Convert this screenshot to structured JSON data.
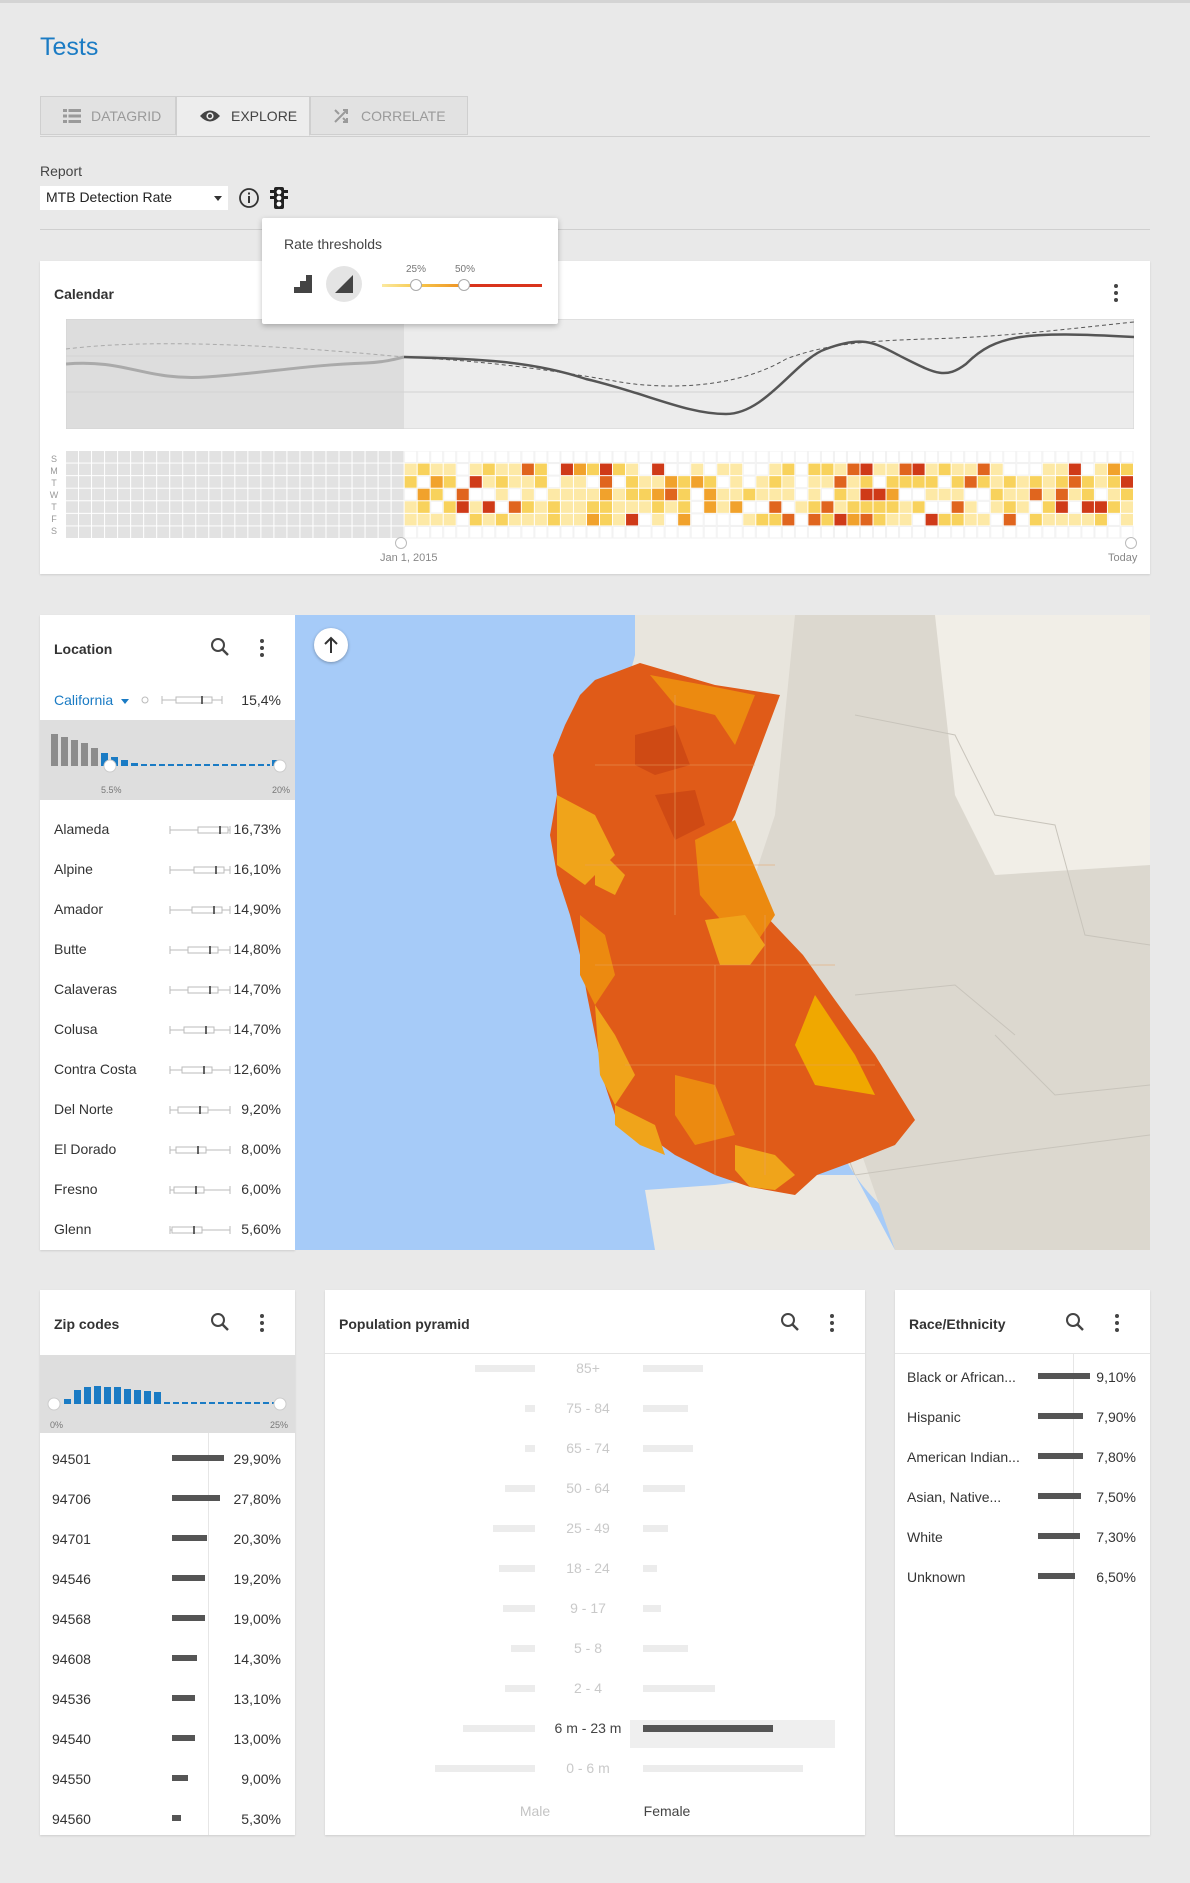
{
  "page_title": "Tests",
  "tabs": [
    {
      "label": "DATAGRID",
      "icon": "list-icon",
      "active": false
    },
    {
      "label": "EXPLORE",
      "icon": "eye-icon",
      "active": true
    },
    {
      "label": "CORRELATE",
      "icon": "shuffle-icon",
      "active": false
    }
  ],
  "report": {
    "label": "Report",
    "selected": "MTB Detection Rate"
  },
  "thresholds": {
    "title": "Rate thresholds",
    "low_label": "25%",
    "high_label": "50%",
    "colors": [
      "#f7d36b",
      "#f0a62a",
      "#e8421e"
    ]
  },
  "calendar": {
    "title": "Calendar",
    "day_labels": [
      "S",
      "M",
      "T",
      "W",
      "T",
      "F",
      "S"
    ],
    "start_label": "Jan 1, 2015",
    "end_label": "Today",
    "heat_colors": [
      "#fff",
      "#fde9a6",
      "#f8d25c",
      "#f1a22c",
      "#e0651e",
      "#cf3a18"
    ]
  },
  "location": {
    "title": "Location",
    "region": "California",
    "region_pct": "15,4%",
    "range_min": "5.5%",
    "range_max": "20%",
    "rows": [
      {
        "name": "Alameda",
        "pct": "16,73%"
      },
      {
        "name": "Alpine",
        "pct": "16,10%"
      },
      {
        "name": "Amador",
        "pct": "14,90%"
      },
      {
        "name": "Butte",
        "pct": "14,80%"
      },
      {
        "name": "Calaveras",
        "pct": "14,70%"
      },
      {
        "name": "Colusa",
        "pct": "14,70%"
      },
      {
        "name": "Contra Costa",
        "pct": "12,60%"
      },
      {
        "name": "Del Norte",
        "pct": "9,20%"
      },
      {
        "name": "El Dorado",
        "pct": "8,00%"
      },
      {
        "name": "Fresno",
        "pct": "6,00%"
      },
      {
        "name": "Glenn",
        "pct": "5,60%"
      }
    ]
  },
  "zip": {
    "title": "Zip codes",
    "range_min": "0%",
    "range_max": "25%",
    "rows": [
      {
        "code": "94501",
        "pct": "29,90%",
        "value": 29.9
      },
      {
        "code": "94706",
        "pct": "27,80%",
        "value": 27.8
      },
      {
        "code": "94701",
        "pct": "20,30%",
        "value": 20.3
      },
      {
        "code": "94546",
        "pct": "19,20%",
        "value": 19.2
      },
      {
        "code": "94568",
        "pct": "19,00%",
        "value": 19.0
      },
      {
        "code": "94608",
        "pct": "14,30%",
        "value": 14.3
      },
      {
        "code": "94536",
        "pct": "13,10%",
        "value": 13.1
      },
      {
        "code": "94540",
        "pct": "13,00%",
        "value": 13.0
      },
      {
        "code": "94550",
        "pct": "9,00%",
        "value": 9.0
      },
      {
        "code": "94560",
        "pct": "5,30%",
        "value": 5.3
      }
    ]
  },
  "pyramid": {
    "title": "Population pyramid",
    "male_label": "Male",
    "female_label": "Female",
    "highlight": "6 m - 23 m",
    "groups": [
      "85+",
      "75 - 84",
      "65 - 74",
      "50 - 64",
      "25 - 49",
      "18 - 24",
      "9 - 17",
      "5 - 8",
      "2 - 4",
      "6 m - 23 m",
      "0 - 6 m"
    ]
  },
  "race": {
    "title": "Race/Ethnicity",
    "rows": [
      {
        "name": "Black or African...",
        "pct": "9,10%",
        "value": 9.1
      },
      {
        "name": "Hispanic",
        "pct": "7,90%",
        "value": 7.9
      },
      {
        "name": "American Indian...",
        "pct": "7,80%",
        "value": 7.8
      },
      {
        "name": "Asian, Native...",
        "pct": "7,50%",
        "value": 7.5
      },
      {
        "name": "White",
        "pct": "7,30%",
        "value": 7.3
      },
      {
        "name": "Unknown",
        "pct": "6,50%",
        "value": 6.5
      }
    ]
  }
}
